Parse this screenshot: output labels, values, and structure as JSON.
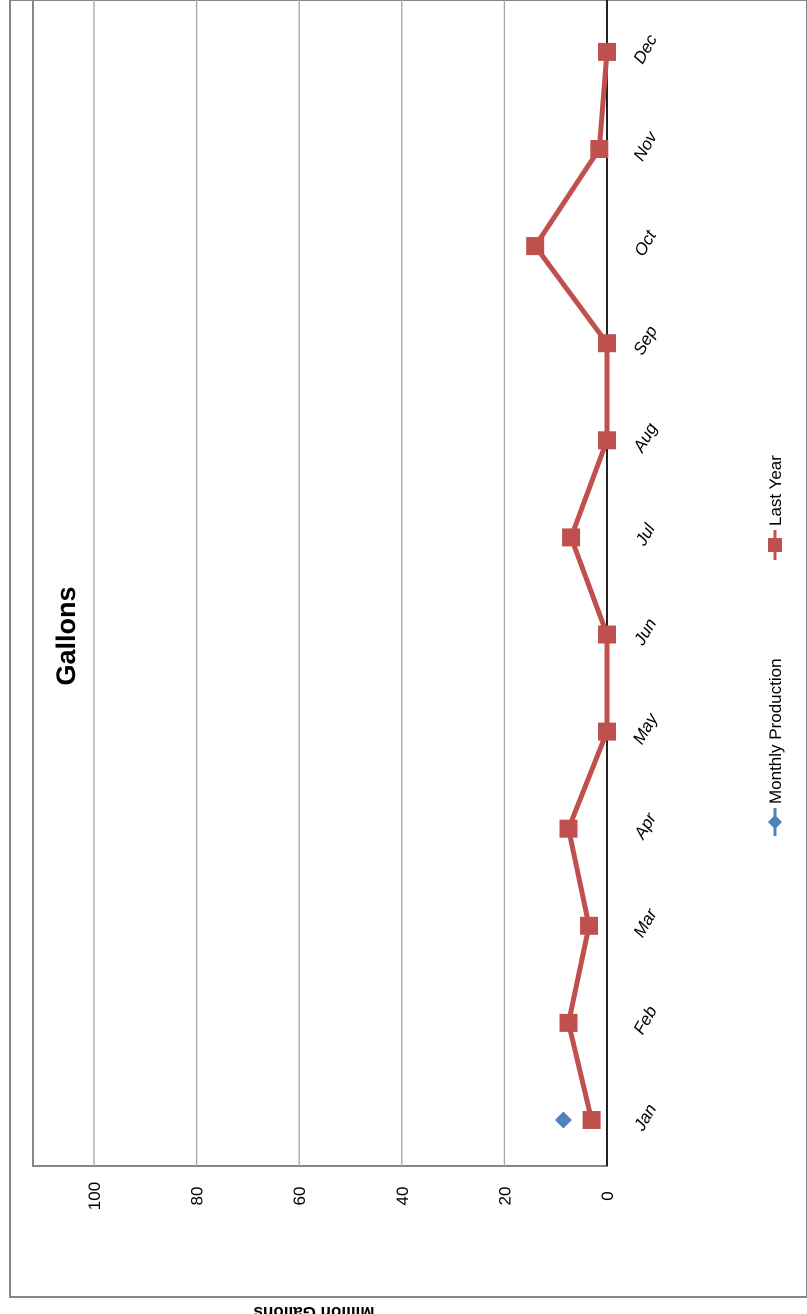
{
  "chart_data": {
    "type": "line",
    "title": "Gallons",
    "ylabel": "Million Gallons",
    "xlabel": "",
    "categories": [
      "Jan",
      "Feb",
      "Mar",
      "Apr",
      "May",
      "Jun",
      "Jul",
      "Aug",
      "Sep",
      "Oct",
      "Nov",
      "Dec"
    ],
    "y_ticks": [
      "0",
      "20",
      "40",
      "60",
      "80",
      "100"
    ],
    "ylim": [
      0,
      112
    ],
    "grid": true,
    "legend_position": "bottom",
    "orientation": "rotated 90 degrees clockwise",
    "series": [
      {
        "name": "Monthly Production",
        "marker": "diamond",
        "color": "#4F81BD",
        "values": [
          8.5,
          null,
          null,
          null,
          null,
          null,
          null,
          null,
          null,
          null,
          null,
          null
        ]
      },
      {
        "name": "Last Year",
        "marker": "square",
        "color": "#C0504D",
        "values": [
          3,
          7.5,
          3.5,
          7.5,
          0,
          0,
          7,
          0,
          0,
          14,
          1.5,
          0
        ]
      }
    ]
  },
  "colors": {
    "grid": "#a6a6a6",
    "frame": "#868686",
    "axis": "#000000"
  }
}
